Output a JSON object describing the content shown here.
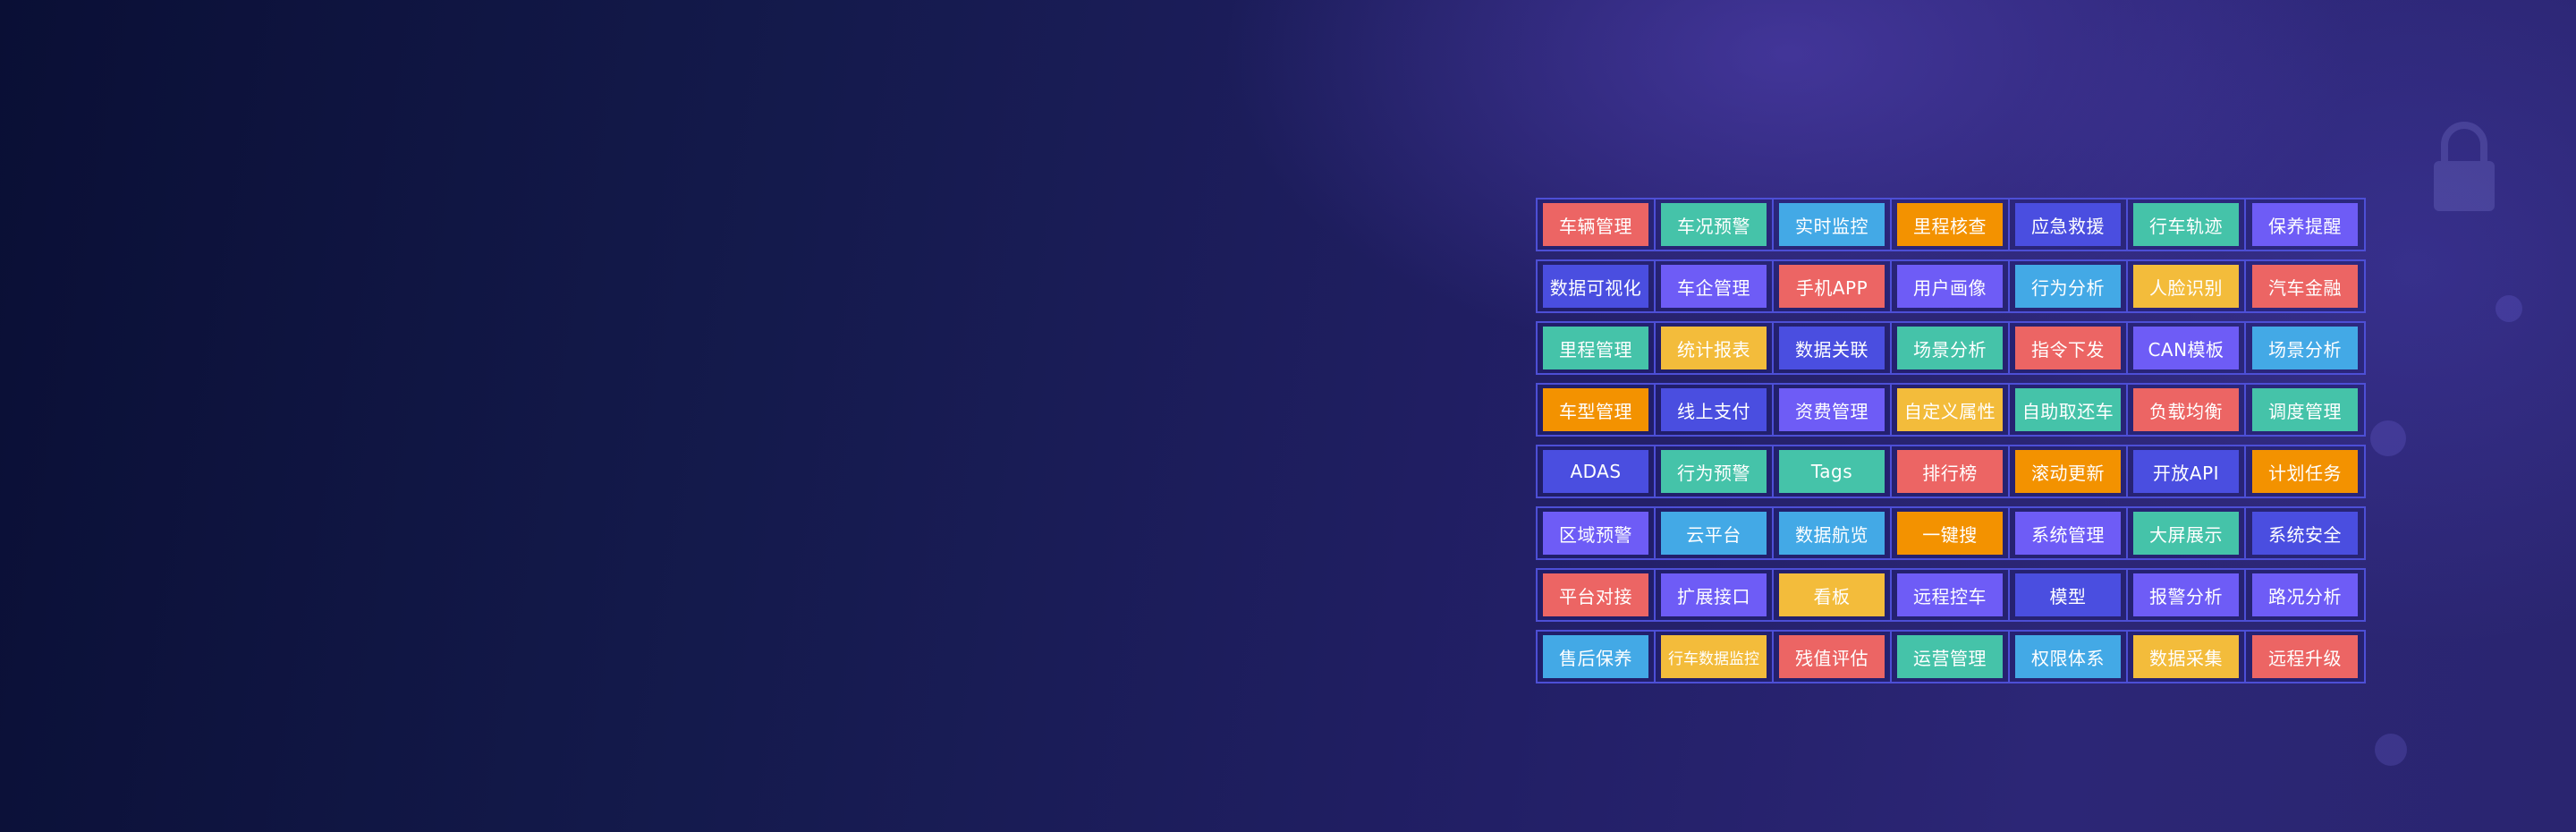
{
  "colors": {
    "red": "#ec6564",
    "teal": "#45c3a9",
    "blue": "#43a9e6",
    "orange": "#f39200",
    "indigo": "#4a4ee0",
    "purple": "#6e5cf6",
    "yellow": "#f3bc3b"
  },
  "decor_icon": "lock-icon",
  "feature_grid": [
    [
      {
        "label": "车辆管理",
        "color": "red"
      },
      {
        "label": "车况预警",
        "color": "teal"
      },
      {
        "label": "实时监控",
        "color": "blue"
      },
      {
        "label": "里程核查",
        "color": "orange"
      },
      {
        "label": "应急救援",
        "color": "indigo"
      },
      {
        "label": "行车轨迹",
        "color": "teal"
      },
      {
        "label": "保养提醒",
        "color": "purple"
      }
    ],
    [
      {
        "label": "数据可视化",
        "color": "indigo"
      },
      {
        "label": "车企管理",
        "color": "purple"
      },
      {
        "label": "手机APP",
        "color": "red"
      },
      {
        "label": "用户画像",
        "color": "purple"
      },
      {
        "label": "行为分析",
        "color": "blue"
      },
      {
        "label": "人脸识别",
        "color": "yellow"
      },
      {
        "label": "汽车金融",
        "color": "red"
      }
    ],
    [
      {
        "label": "里程管理",
        "color": "teal"
      },
      {
        "label": "统计报表",
        "color": "yellow"
      },
      {
        "label": "数据关联",
        "color": "indigo"
      },
      {
        "label": "场景分析",
        "color": "teal"
      },
      {
        "label": "指令下发",
        "color": "red"
      },
      {
        "label": "CAN模板",
        "color": "purple"
      },
      {
        "label": "场景分析",
        "color": "blue"
      }
    ],
    [
      {
        "label": "车型管理",
        "color": "orange"
      },
      {
        "label": "线上支付",
        "color": "indigo"
      },
      {
        "label": "资费管理",
        "color": "purple"
      },
      {
        "label": "自定义属性",
        "color": "yellow"
      },
      {
        "label": "自助取还车",
        "color": "teal"
      },
      {
        "label": "负载均衡",
        "color": "red"
      },
      {
        "label": "调度管理",
        "color": "teal"
      }
    ],
    [
      {
        "label": "ADAS",
        "color": "indigo"
      },
      {
        "label": "行为预警",
        "color": "teal"
      },
      {
        "label": "Tags",
        "color": "teal"
      },
      {
        "label": "排行榜",
        "color": "red"
      },
      {
        "label": "滚动更新",
        "color": "orange"
      },
      {
        "label": "开放API",
        "color": "indigo"
      },
      {
        "label": "计划任务",
        "color": "orange"
      }
    ],
    [
      {
        "label": "区域预警",
        "color": "purple"
      },
      {
        "label": "云平台",
        "color": "blue"
      },
      {
        "label": "数据航览",
        "color": "blue"
      },
      {
        "label": "一键搜",
        "color": "orange"
      },
      {
        "label": "系统管理",
        "color": "purple"
      },
      {
        "label": "大屏展示",
        "color": "teal"
      },
      {
        "label": "系统安全",
        "color": "indigo"
      }
    ],
    [
      {
        "label": "平台对接",
        "color": "red"
      },
      {
        "label": "扩展接口",
        "color": "purple"
      },
      {
        "label": "看板",
        "color": "yellow"
      },
      {
        "label": "远程控车",
        "color": "purple"
      },
      {
        "label": "模型",
        "color": "indigo"
      },
      {
        "label": "报警分析",
        "color": "purple"
      },
      {
        "label": "路况分析",
        "color": "purple"
      }
    ],
    [
      {
        "label": "售后保养",
        "color": "blue"
      },
      {
        "label": "行车数据监控",
        "color": "yellow"
      },
      {
        "label": "残值评估",
        "color": "red"
      },
      {
        "label": "运营管理",
        "color": "teal"
      },
      {
        "label": "权限体系",
        "color": "blue"
      },
      {
        "label": "数据采集",
        "color": "yellow"
      },
      {
        "label": "远程升级",
        "color": "red"
      }
    ]
  ]
}
